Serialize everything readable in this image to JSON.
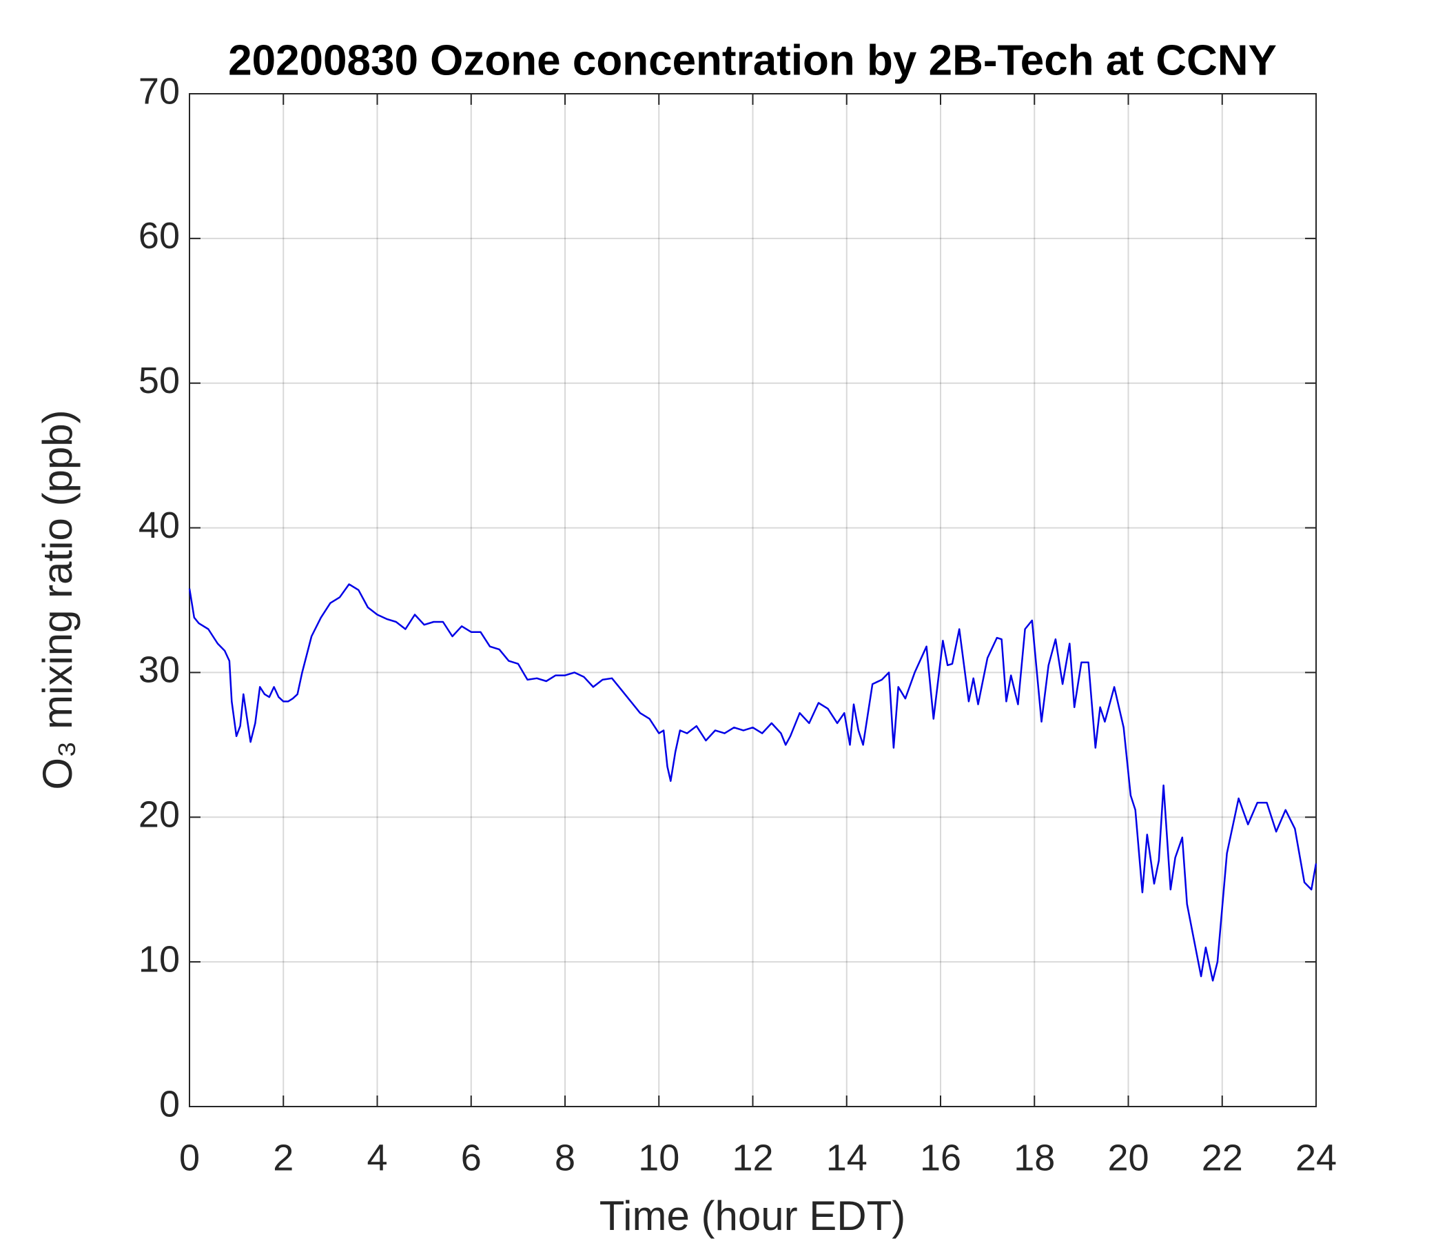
{
  "chart_data": {
    "type": "line",
    "title": "20200830 Ozone concentration by 2B-Tech at CCNY",
    "xlabel": "Time (hour EDT)",
    "ylabel": "O₃ mixing ratio (ppb)",
    "xlim": [
      0,
      24
    ],
    "ylim": [
      0,
      70
    ],
    "xticks": [
      0,
      2,
      4,
      6,
      8,
      10,
      12,
      14,
      16,
      18,
      20,
      22,
      24
    ],
    "yticks": [
      0,
      10,
      20,
      30,
      40,
      50,
      60,
      70
    ],
    "grid": true,
    "series": [
      {
        "color": "#0000e6",
        "x": [
          0,
          0.1,
          0.2,
          0.4,
          0.6,
          0.75,
          0.85,
          0.9,
          1.0,
          1.08,
          1.15,
          1.3,
          1.4,
          1.5,
          1.6,
          1.7,
          1.8,
          1.9,
          2.0,
          2.1,
          2.2,
          2.3,
          2.4,
          2.6,
          2.8,
          3.0,
          3.2,
          3.4,
          3.6,
          3.8,
          4.0,
          4.2,
          4.4,
          4.6,
          4.8,
          5.0,
          5.2,
          5.4,
          5.6,
          5.8,
          6.0,
          6.2,
          6.4,
          6.6,
          6.8,
          7.0,
          7.2,
          7.4,
          7.6,
          7.8,
          8.0,
          8.2,
          8.4,
          8.6,
          8.8,
          9.0,
          9.2,
          9.4,
          9.6,
          9.8,
          10.0,
          10.1,
          10.18,
          10.25,
          10.35,
          10.45,
          10.6,
          10.8,
          11.0,
          11.2,
          11.4,
          11.6,
          11.8,
          12.0,
          12.2,
          12.4,
          12.6,
          12.7,
          12.8,
          13.0,
          13.2,
          13.4,
          13.6,
          13.8,
          13.95,
          14.07,
          14.15,
          14.25,
          14.35,
          14.55,
          14.75,
          14.9,
          15.0,
          15.1,
          15.25,
          15.45,
          15.7,
          15.85,
          16.05,
          16.15,
          16.25,
          16.4,
          16.6,
          16.7,
          16.8,
          17.0,
          17.2,
          17.3,
          17.4,
          17.5,
          17.65,
          17.8,
          17.95,
          18.15,
          18.3,
          18.45,
          18.6,
          18.75,
          18.85,
          19.0,
          19.15,
          19.3,
          19.4,
          19.5,
          19.7,
          19.9,
          20.05,
          20.15,
          20.3,
          20.4,
          20.55,
          20.65,
          20.75,
          20.9,
          21.0,
          21.15,
          21.25,
          21.4,
          21.55,
          21.65,
          21.8,
          21.9,
          22.1,
          22.35,
          22.55,
          22.75,
          22.95,
          23.15,
          23.35,
          23.55,
          23.75,
          23.9,
          24.0
        ],
        "values": [
          35.8,
          33.8,
          33.4,
          33.0,
          32.0,
          31.5,
          30.8,
          28.0,
          25.6,
          26.3,
          28.5,
          25.2,
          26.5,
          29.0,
          28.5,
          28.3,
          29.0,
          28.3,
          28.0,
          28.0,
          28.2,
          28.5,
          30.0,
          32.5,
          33.8,
          34.8,
          35.2,
          36.1,
          35.7,
          34.5,
          34.0,
          33.7,
          33.5,
          33.0,
          34.0,
          33.3,
          33.5,
          33.5,
          32.5,
          33.2,
          32.8,
          32.8,
          31.8,
          31.6,
          30.8,
          30.6,
          29.5,
          29.6,
          29.4,
          29.8,
          29.8,
          30.0,
          29.7,
          29.0,
          29.5,
          29.6,
          28.8,
          28.0,
          27.2,
          26.8,
          25.8,
          26.0,
          23.5,
          22.5,
          24.5,
          26.0,
          25.8,
          26.3,
          25.3,
          26.0,
          25.8,
          26.2,
          26.0,
          26.2,
          25.8,
          26.5,
          25.8,
          25.0,
          25.6,
          27.2,
          26.5,
          27.9,
          27.5,
          26.5,
          27.2,
          25.0,
          27.8,
          26.0,
          25.0,
          29.2,
          29.5,
          30.0,
          24.8,
          29.0,
          28.2,
          30.0,
          31.8,
          26.8,
          32.2,
          30.5,
          30.6,
          33.0,
          28.0,
          29.6,
          27.8,
          31.0,
          32.4,
          32.3,
          28.0,
          29.8,
          27.8,
          33.0,
          33.6,
          26.6,
          30.5,
          32.3,
          29.2,
          32.0,
          27.6,
          30.7,
          30.7,
          24.8,
          27.6,
          26.6,
          29.0,
          26.2,
          21.5,
          20.5,
          14.8,
          18.8,
          15.4,
          17.0,
          22.2,
          15.0,
          17.2,
          18.6,
          14.0,
          11.5,
          9.0,
          11.0,
          8.7,
          10.0,
          17.5,
          21.3,
          19.5,
          21.0,
          21.0,
          19.0,
          20.5,
          19.2,
          15.5,
          15.0,
          16.8
        ]
      }
    ]
  }
}
